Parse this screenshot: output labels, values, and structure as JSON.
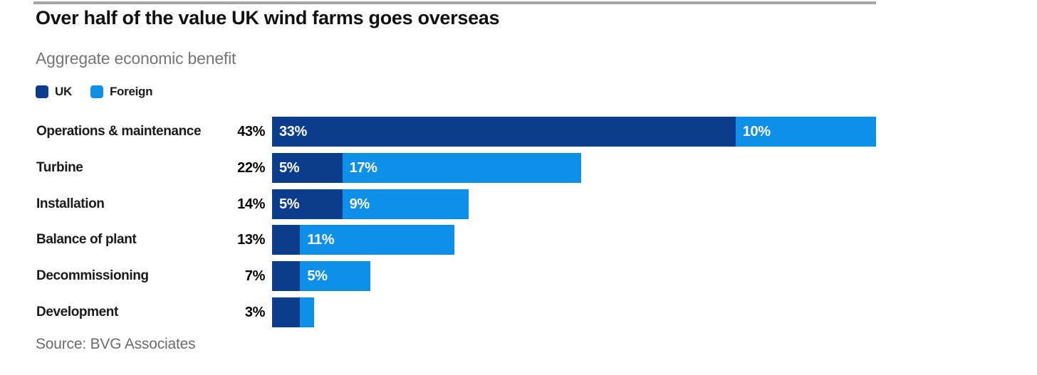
{
  "chart_data": {
    "type": "bar",
    "orientation": "horizontal",
    "stacked": true,
    "title": "Over half of the value UK wind farms goes overseas",
    "subtitle": "Aggregate economic benefit",
    "source": "Source: BVG Associates",
    "categories": [
      "Operations & maintenance",
      "Turbine",
      "Installation",
      "Balance of plant",
      "Decommissioning",
      "Development"
    ],
    "total_labels": [
      "43%",
      "22%",
      "14%",
      "13%",
      "7%",
      "3%"
    ],
    "series": [
      {
        "name": "UK",
        "color": "#0c3d8d",
        "values": [
          33,
          5,
          5,
          2,
          2,
          2
        ],
        "bar_labels": [
          "33%",
          "5%",
          "5%",
          "",
          "",
          ""
        ]
      },
      {
        "name": "Foreign",
        "color": "#0e90e9",
        "values": [
          10,
          17,
          9,
          11,
          5,
          1
        ],
        "bar_labels": [
          "10%",
          "17%",
          "9%",
          "11%",
          "5%",
          ""
        ]
      }
    ],
    "unit": "%",
    "xlim": [
      0,
      43
    ],
    "grid": false,
    "legend_position": "top-left"
  },
  "colors": {
    "title_text": "#111111",
    "subtitle_text": "#757575",
    "source_text": "#6b6b6b",
    "top_rule": "#a6a6a6",
    "bar_label_text": "#ffffff"
  }
}
